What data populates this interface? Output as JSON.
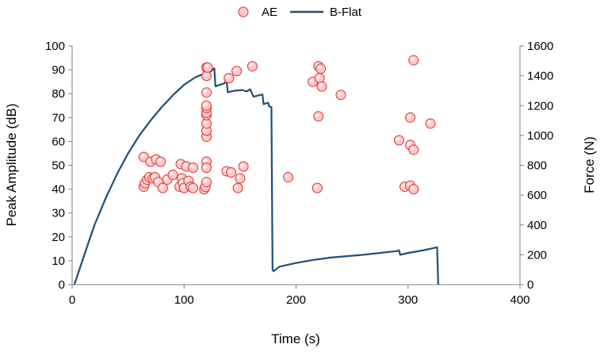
{
  "chart_data": {
    "type": "scatter",
    "title": "",
    "xlabel": "Time (s)",
    "ylabel_left": "Peak Amplitude (dB)",
    "ylabel_right": "Force (N)",
    "xlim": [
      0,
      400
    ],
    "ylim_left": [
      0,
      100
    ],
    "ylim_right": [
      0,
      1600
    ],
    "x_ticks": [
      0,
      100,
      200,
      300,
      400
    ],
    "y_left_ticks": [
      0,
      10,
      20,
      30,
      40,
      50,
      60,
      70,
      80,
      90,
      100
    ],
    "y_right_ticks": [
      0,
      200,
      400,
      600,
      800,
      1000,
      1200,
      1400,
      1600
    ],
    "grid": false,
    "legend_position": "top-center",
    "series": [
      {
        "name": "AE",
        "kind": "scatter",
        "axis": "left",
        "color": "#ff4040",
        "points": [
          [
            64,
            53.5
          ],
          [
            64,
            41
          ],
          [
            65,
            42.5
          ],
          [
            67,
            44
          ],
          [
            69,
            45
          ],
          [
            70,
            51.5
          ],
          [
            72,
            44.5
          ],
          [
            74,
            45
          ],
          [
            75,
            52.5
          ],
          [
            77,
            43
          ],
          [
            79,
            51.5
          ],
          [
            81,
            40.5
          ],
          [
            85,
            44
          ],
          [
            90,
            46
          ],
          [
            96,
            41
          ],
          [
            97,
            50.5
          ],
          [
            98,
            44.5
          ],
          [
            99,
            42.5
          ],
          [
            100,
            40.5
          ],
          [
            102,
            49.5
          ],
          [
            104,
            43.5
          ],
          [
            106,
            41
          ],
          [
            108,
            40.5
          ],
          [
            108,
            49
          ],
          [
            118,
            40
          ],
          [
            119,
            41
          ],
          [
            120,
            43
          ],
          [
            120,
            51.5
          ],
          [
            120,
            49
          ],
          [
            120,
            62
          ],
          [
            120,
            64.5
          ],
          [
            120,
            67.5
          ],
          [
            120,
            71
          ],
          [
            120,
            72
          ],
          [
            120,
            74
          ],
          [
            120,
            75
          ],
          [
            120,
            80.5
          ],
          [
            120,
            87.5
          ],
          [
            120,
            91
          ],
          [
            121,
            91
          ],
          [
            138,
            47.5
          ],
          [
            140,
            86.5
          ],
          [
            142,
            47
          ],
          [
            147,
            89.5
          ],
          [
            148,
            40.5
          ],
          [
            150,
            44.5
          ],
          [
            153,
            49.5
          ],
          [
            161,
            91.5
          ],
          [
            193,
            45
          ],
          [
            215,
            85
          ],
          [
            219,
            40.5
          ],
          [
            220,
            70.5
          ],
          [
            220,
            91.5
          ],
          [
            221,
            86.5
          ],
          [
            222,
            90.5
          ],
          [
            223,
            83
          ],
          [
            240,
            79.5
          ],
          [
            292,
            60.5
          ],
          [
            297,
            41
          ],
          [
            302,
            41.5
          ],
          [
            302,
            70
          ],
          [
            302,
            58.5
          ],
          [
            305,
            40
          ],
          [
            305,
            56.5
          ],
          [
            305,
            94
          ],
          [
            320,
            67.5
          ]
        ]
      },
      {
        "name": "B-Flat",
        "kind": "line",
        "axis": "right",
        "color": "#1f4e79",
        "points": [
          [
            2,
            0
          ],
          [
            10,
            180
          ],
          [
            20,
            400
          ],
          [
            30,
            580
          ],
          [
            40,
            740
          ],
          [
            50,
            880
          ],
          [
            60,
            1000
          ],
          [
            70,
            1100
          ],
          [
            80,
            1190
          ],
          [
            90,
            1270
          ],
          [
            100,
            1340
          ],
          [
            110,
            1390
          ],
          [
            118,
            1415
          ],
          [
            124,
            1430
          ],
          [
            127,
            1450
          ],
          [
            128,
            1330
          ],
          [
            136,
            1350
          ],
          [
            138,
            1370
          ],
          [
            139,
            1290
          ],
          [
            145,
            1300
          ],
          [
            152,
            1305
          ],
          [
            156,
            1295
          ],
          [
            159,
            1310
          ],
          [
            162,
            1260
          ],
          [
            170,
            1275
          ],
          [
            171,
            1210
          ],
          [
            175,
            1220
          ],
          [
            176,
            1195
          ],
          [
            178,
            1190
          ],
          [
            179,
            100
          ],
          [
            180,
            90
          ],
          [
            185,
            120
          ],
          [
            200,
            145
          ],
          [
            215,
            165
          ],
          [
            228,
            178
          ],
          [
            229,
            180
          ],
          [
            260,
            200
          ],
          [
            290,
            225
          ],
          [
            292,
            230
          ],
          [
            293,
            200
          ],
          [
            300,
            212
          ],
          [
            315,
            232
          ],
          [
            326,
            250
          ],
          [
            327,
            0
          ]
        ]
      }
    ]
  }
}
